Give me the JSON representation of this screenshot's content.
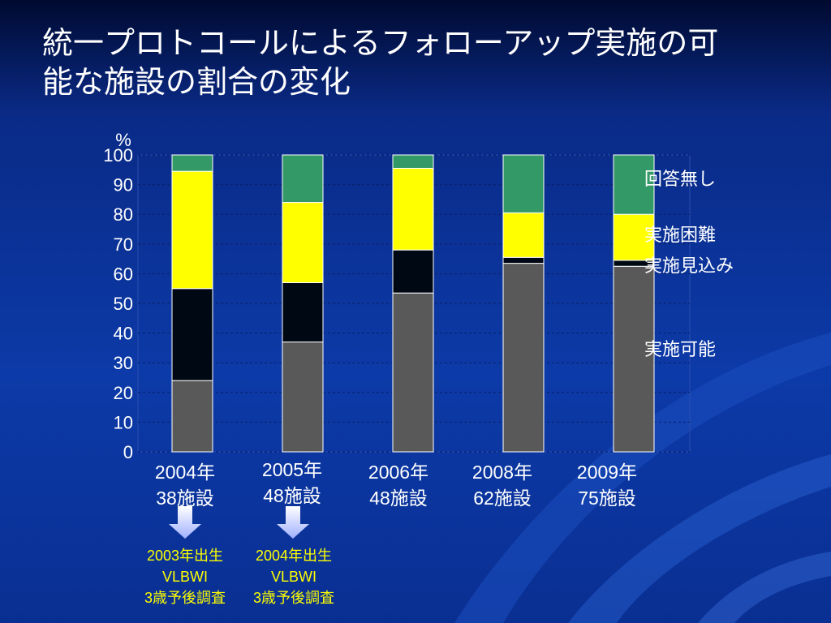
{
  "slide": {
    "title_line1": "統一プロトコールによるフォローアップ実施の可",
    "title_line2": "能な施設の割合の変化"
  },
  "chart_data": {
    "type": "bar",
    "stacked": true,
    "categories": [
      {
        "year": "2004年",
        "facilities": "38施設"
      },
      {
        "year": "2005年",
        "facilities": "48施設"
      },
      {
        "year": "2006年",
        "facilities": "48施設"
      },
      {
        "year": "2008年",
        "facilities": "62施設"
      },
      {
        "year": "2009年",
        "facilities": "75施設"
      }
    ],
    "series": [
      {
        "name": "実施可能",
        "color": "#595959",
        "values": [
          24,
          37,
          53.5,
          63.5,
          62.5
        ]
      },
      {
        "name": "実施見込み",
        "color": "#000814",
        "values": [
          31,
          20,
          14.5,
          2,
          2
        ]
      },
      {
        "name": "実施困難",
        "color": "#ffff00",
        "values": [
          39.5,
          27,
          27.5,
          15,
          15.5
        ]
      },
      {
        "name": "回答無し",
        "color": "#339966",
        "values": [
          5.5,
          16,
          4.5,
          19.5,
          20
        ]
      }
    ],
    "ylabel": "%",
    "ylim": [
      0,
      100
    ],
    "yticks": [
      "0",
      "10",
      "20",
      "30",
      "40",
      "50",
      "60",
      "70",
      "80",
      "90",
      "100"
    ],
    "grid": true,
    "legend": "right",
    "legend_order": [
      "回答無し",
      "実施困難",
      "実施見込み",
      "実施可能"
    ]
  },
  "notes": [
    {
      "line1": "2003年出生",
      "line2": "VLBWI",
      "line3": "3歳予後調査"
    },
    {
      "line1": "2004年出生",
      "line2": "VLBWI",
      "line3": "3歳予後調査"
    }
  ]
}
